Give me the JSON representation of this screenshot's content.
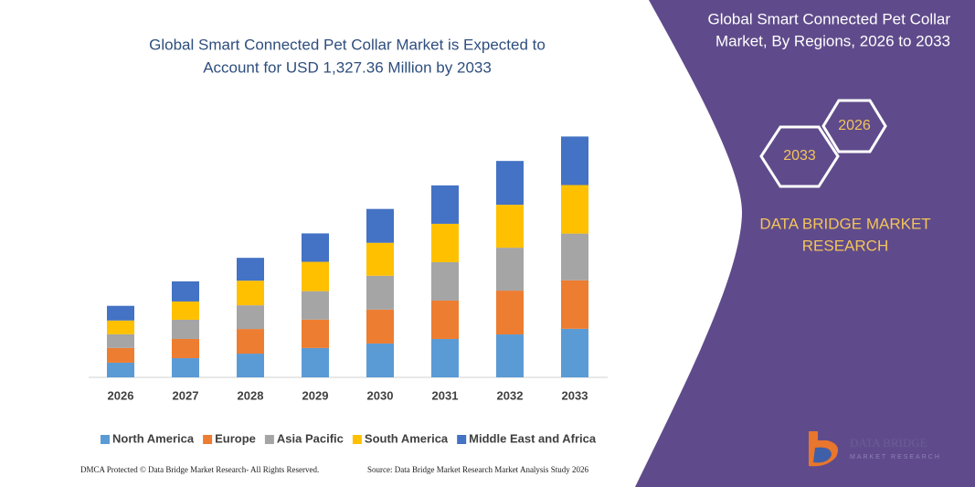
{
  "chart_data": {
    "type": "stacked-bar",
    "title": [
      "Global Smart Connected Pet Collar Market is Expected to",
      "Account for USD 1,327.36 Million by 2033"
    ],
    "categories": [
      "2026",
      "2027",
      "2028",
      "2029",
      "2030",
      "2031",
      "2032",
      "2033"
    ],
    "series": [
      {
        "name": "North America",
        "color": "#5b9bd5",
        "values": [
          81,
          106,
          131,
          162,
          187,
          212,
          237,
          268
        ]
      },
      {
        "name": "Europe",
        "color": "#ed7d31",
        "values": [
          81,
          106,
          136,
          157,
          187,
          212,
          242,
          268
        ]
      },
      {
        "name": "Asia Pacific",
        "color": "#a5a5a5",
        "values": [
          76,
          106,
          131,
          157,
          187,
          212,
          237,
          258
        ]
      },
      {
        "name": "South America",
        "color": "#ffc000",
        "values": [
          76,
          101,
          136,
          162,
          182,
          212,
          237,
          268
        ]
      },
      {
        "name": "Middle East and Africa",
        "color": "#4472c4",
        "values": [
          81,
          111,
          126,
          157,
          187,
          212,
          242,
          268
        ]
      }
    ],
    "ylim": [
      0,
      1330
    ]
  },
  "panel": {
    "title": [
      "Global Smart Connected Pet Collar",
      "Market, By Regions, 2026 to 2033"
    ],
    "hexagons": [
      "2026",
      "2033"
    ],
    "brand": [
      "DATA BRIDGE MARKET",
      "RESEARCH"
    ],
    "logo": {
      "name": "DATA BRIDGE",
      "tagline": "MARKET RESEARCH"
    }
  },
  "footer": {
    "left": "DMCA Protected © Data Bridge Market Research- All Rights Reserved.",
    "right": "Source: Data Bridge Market Research Market Analysis Study 2026"
  }
}
